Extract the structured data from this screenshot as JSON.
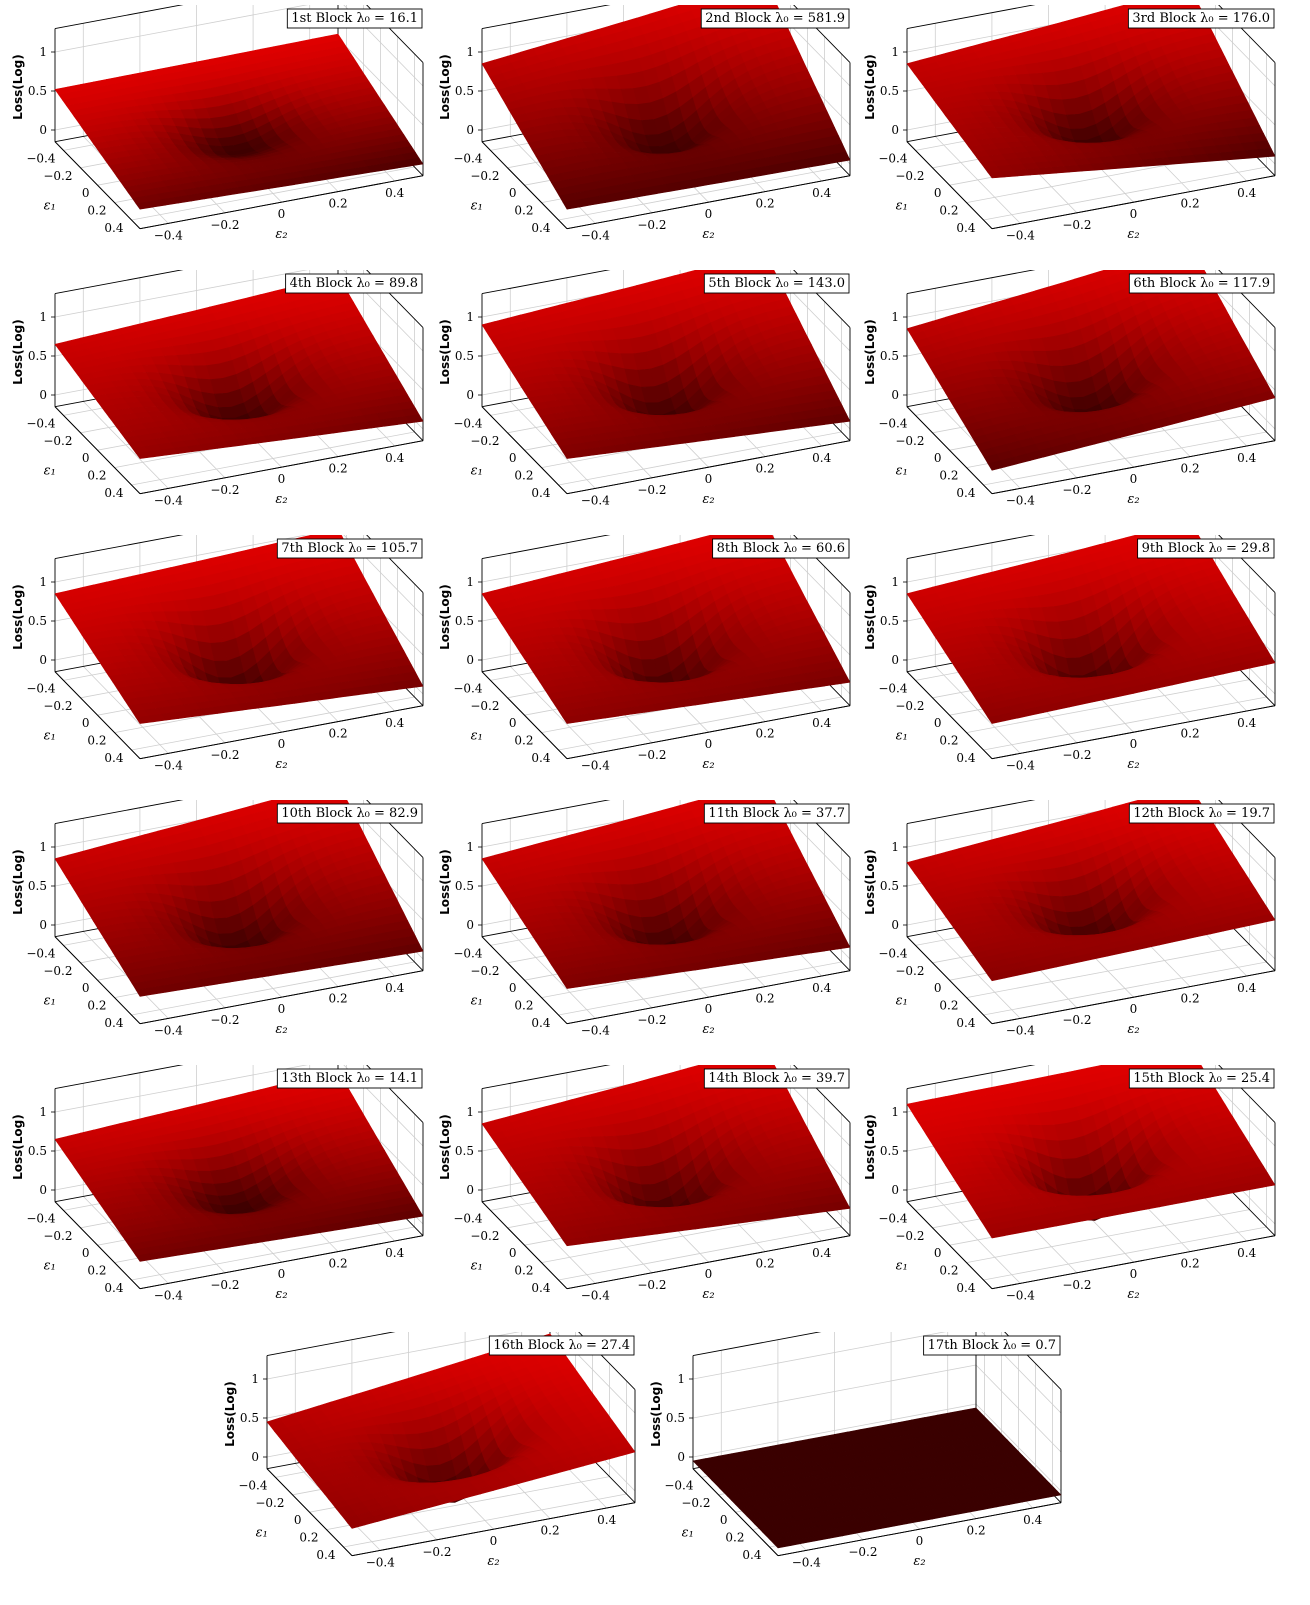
{
  "chart_data": [
    {
      "type": "surface",
      "title": "1st Block λ₀ = 16.1",
      "block": "1st Block",
      "lambda0": 16.1,
      "xlabel": "ε₁",
      "ylabel": "ε₂",
      "zlabel": "Loss(Log)",
      "xlim": [
        -0.5,
        0.5
      ],
      "ylim": [
        -0.5,
        0.5
      ],
      "zlim": [
        -0.15,
        1.2
      ],
      "xticks": [
        "−0.4",
        "−0.2",
        "0",
        "0.2",
        "0.4"
      ],
      "yticks": [
        "−0.4",
        "−0.2",
        "0",
        "0.2",
        "0.4"
      ],
      "zticks": [
        "0",
        "0.5",
        "1"
      ],
      "z_corner_back_left": 0.52,
      "z_corner_back_right": 0.55,
      "z_corner_front_left": 0.1,
      "z_corner_front_right": 0.0,
      "z_min": -0.2
    },
    {
      "type": "surface",
      "title": "2nd Block λ₀ = 581.9",
      "block": "2nd Block",
      "lambda0": 581.9,
      "xlabel": "ε₁",
      "ylabel": "ε₂",
      "zlabel": "Loss(Log)",
      "xlim": [
        -0.5,
        0.5
      ],
      "ylim": [
        -0.5,
        0.5
      ],
      "zlim": [
        -0.15,
        1.2
      ],
      "xticks": [
        "−0.4",
        "−0.2",
        "0",
        "0.2",
        "0.4"
      ],
      "yticks": [
        "−0.4",
        "−0.2",
        "0",
        "0.2",
        "0.4"
      ],
      "zticks": [
        "0",
        "0.5",
        "1"
      ],
      "z_corner_back_left": 0.85,
      "z_corner_back_right": 1.25,
      "z_corner_front_left": 0.1,
      "z_corner_front_right": 0.05,
      "z_min": -0.3
    },
    {
      "type": "surface",
      "title": "3rd Block λ₀ = 176.0",
      "block": "3rd Block",
      "lambda0": 176.0,
      "xlabel": "ε₁",
      "ylabel": "ε₂",
      "zlabel": "Loss(Log)",
      "xlim": [
        -0.5,
        0.5
      ],
      "ylim": [
        -0.5,
        0.5
      ],
      "zlim": [
        -0.15,
        1.2
      ],
      "xticks": [
        "−0.4",
        "−0.2",
        "0",
        "0.2",
        "0.4"
      ],
      "yticks": [
        "−0.4",
        "−0.2",
        "0",
        "0.2",
        "0.4"
      ],
      "zticks": [
        "0",
        "0.5",
        "1"
      ],
      "z_corner_back_left": 0.85,
      "z_corner_back_right": 1.15,
      "z_corner_front_left": 0.5,
      "z_corner_front_right": 0.1,
      "z_min": -0.25
    },
    {
      "type": "surface",
      "title": "4th Block λ₀ = 89.8",
      "block": "4th Block",
      "lambda0": 89.8,
      "xlabel": "ε₁",
      "ylabel": "ε₂",
      "zlabel": "Loss(Log)",
      "xlim": [
        -0.5,
        0.5
      ],
      "ylim": [
        -0.5,
        0.5
      ],
      "zlim": [
        -0.15,
        1.2
      ],
      "xticks": [
        "−0.4",
        "−0.2",
        "0",
        "0.2",
        "0.4"
      ],
      "yticks": [
        "−0.4",
        "−0.2",
        "0",
        "0.2",
        "0.4"
      ],
      "zticks": [
        "0",
        "0.5",
        "1"
      ],
      "z_corner_back_left": 0.65,
      "z_corner_back_right": 0.85,
      "z_corner_front_left": 0.3,
      "z_corner_front_right": 0.1,
      "z_min": -0.35
    },
    {
      "type": "surface",
      "title": "5th Block λ₀ = 143.0",
      "block": "5th Block",
      "lambda0": 143.0,
      "xlabel": "ε₁",
      "ylabel": "ε₂",
      "zlabel": "Loss(Log)",
      "xlim": [
        -0.5,
        0.5
      ],
      "ylim": [
        -0.5,
        0.5
      ],
      "zlim": [
        -0.15,
        1.2
      ],
      "xticks": [
        "−0.4",
        "−0.2",
        "0",
        "0.2",
        "0.4"
      ],
      "yticks": [
        "−0.4",
        "−0.2",
        "0",
        "0.2",
        "0.4"
      ],
      "zticks": [
        "0",
        "0.5",
        "1"
      ],
      "z_corner_back_left": 0.9,
      "z_corner_back_right": 1.15,
      "z_corner_front_left": 0.3,
      "z_corner_front_right": 0.1,
      "z_min": -0.35
    },
    {
      "type": "surface",
      "title": "6th Block λ₀ = 117.9",
      "block": "6th Block",
      "lambda0": 117.9,
      "xlabel": "ε₁",
      "ylabel": "ε₂",
      "zlabel": "Loss(Log)",
      "xlim": [
        -0.5,
        0.5
      ],
      "ylim": [
        -0.5,
        0.5
      ],
      "zlim": [
        -0.15,
        1.2
      ],
      "xticks": [
        "−0.4",
        "−0.2",
        "0",
        "0.2",
        "0.4"
      ],
      "yticks": [
        "−0.4",
        "−0.2",
        "0",
        "0.2",
        "0.4"
      ],
      "zticks": [
        "0",
        "0.5",
        "1"
      ],
      "z_corner_back_left": 0.85,
      "z_corner_back_right": 1.25,
      "z_corner_front_left": 0.15,
      "z_corner_front_right": 0.4,
      "z_min": -0.3
    },
    {
      "type": "surface",
      "title": "7th Block λ₀ = 105.7",
      "block": "7th Block",
      "lambda0": 105.7,
      "xlabel": "ε₁",
      "ylabel": "ε₂",
      "zlabel": "Loss(Log)",
      "xlim": [
        -0.5,
        0.5
      ],
      "ylim": [
        -0.5,
        0.5
      ],
      "zlim": [
        -0.15,
        1.2
      ],
      "xticks": [
        "−0.4",
        "−0.2",
        "0",
        "0.2",
        "0.4"
      ],
      "yticks": [
        "−0.4",
        "−0.2",
        "0",
        "0.2",
        "0.4"
      ],
      "zticks": [
        "0",
        "0.5",
        "1"
      ],
      "z_corner_back_left": 0.85,
      "z_corner_back_right": 1.0,
      "z_corner_front_left": 0.3,
      "z_corner_front_right": 0.1,
      "z_min": -0.45
    },
    {
      "type": "surface",
      "title": "8th Block λ₀ = 60.6",
      "block": "8th Block",
      "lambda0": 60.6,
      "xlabel": "ε₁",
      "ylabel": "ε₂",
      "zlabel": "Loss(Log)",
      "xlim": [
        -0.5,
        0.5
      ],
      "ylim": [
        -0.5,
        0.5
      ],
      "zlim": [
        -0.15,
        1.2
      ],
      "xticks": [
        "−0.4",
        "−0.2",
        "0",
        "0.2",
        "0.4"
      ],
      "yticks": [
        "−0.4",
        "−0.2",
        "0",
        "0.2",
        "0.4"
      ],
      "zticks": [
        "0",
        "0.5",
        "1"
      ],
      "z_corner_back_left": 0.85,
      "z_corner_back_right": 1.1,
      "z_corner_front_left": 0.3,
      "z_corner_front_right": 0.15,
      "z_min": -0.45
    },
    {
      "type": "surface",
      "title": "9th Block λ₀ = 29.8",
      "block": "9th Block",
      "lambda0": 29.8,
      "xlabel": "ε₁",
      "ylabel": "ε₂",
      "zlabel": "Loss(Log)",
      "xlim": [
        -0.5,
        0.5
      ],
      "ylim": [
        -0.5,
        0.5
      ],
      "zlim": [
        -0.15,
        1.2
      ],
      "xticks": [
        "−0.4",
        "−0.2",
        "0",
        "0.2",
        "0.4"
      ],
      "yticks": [
        "−0.4",
        "−0.2",
        "0",
        "0.2",
        "0.4"
      ],
      "zticks": [
        "0",
        "0.5",
        "1"
      ],
      "z_corner_back_left": 0.85,
      "z_corner_back_right": 1.1,
      "z_corner_front_left": 0.3,
      "z_corner_front_right": 0.4,
      "z_min": -0.45
    },
    {
      "type": "surface",
      "title": "10th Block λ₀ = 82.9",
      "block": "10th Block",
      "lambda0": 82.9,
      "xlabel": "ε₁",
      "ylabel": "ε₂",
      "zlabel": "Loss(Log)",
      "xlim": [
        -0.5,
        0.5
      ],
      "ylim": [
        -0.5,
        0.5
      ],
      "zlim": [
        -0.15,
        1.2
      ],
      "xticks": [
        "−0.4",
        "−0.2",
        "0",
        "0.2",
        "0.4"
      ],
      "yticks": [
        "−0.4",
        "−0.2",
        "0",
        "0.2",
        "0.4"
      ],
      "zticks": [
        "0",
        "0.5",
        "1"
      ],
      "z_corner_back_left": 0.85,
      "z_corner_back_right": 1.15,
      "z_corner_front_left": 0.2,
      "z_corner_front_right": 0.1,
      "z_min": -0.35
    },
    {
      "type": "surface",
      "title": "11th Block λ₀ = 37.7",
      "block": "11th Block",
      "lambda0": 37.7,
      "xlabel": "ε₁",
      "ylabel": "ε₂",
      "zlabel": "Loss(Log)",
      "xlim": [
        -0.5,
        0.5
      ],
      "ylim": [
        -0.5,
        0.5
      ],
      "zlim": [
        -0.15,
        1.2
      ],
      "xticks": [
        "−0.4",
        "−0.2",
        "0",
        "0.2",
        "0.4"
      ],
      "yticks": [
        "−0.4",
        "−0.2",
        "0",
        "0.2",
        "0.4"
      ],
      "zticks": [
        "0",
        "0.5",
        "1"
      ],
      "z_corner_back_left": 0.85,
      "z_corner_back_right": 1.15,
      "z_corner_front_left": 0.3,
      "z_corner_front_right": 0.15,
      "z_min": -0.35
    },
    {
      "type": "surface",
      "title": "12th Block λ₀ = 19.7",
      "block": "12th Block",
      "lambda0": 19.7,
      "xlabel": "ε₁",
      "ylabel": "ε₂",
      "zlabel": "Loss(Log)",
      "xlim": [
        -0.5,
        0.5
      ],
      "ylim": [
        -0.5,
        0.5
      ],
      "zlim": [
        -0.15,
        1.2
      ],
      "xticks": [
        "−0.4",
        "−0.2",
        "0",
        "0.2",
        "0.4"
      ],
      "yticks": [
        "−0.4",
        "−0.2",
        "0",
        "0.2",
        "0.4"
      ],
      "zticks": [
        "0",
        "0.5",
        "1"
      ],
      "z_corner_back_left": 0.8,
      "z_corner_back_right": 1.1,
      "z_corner_front_left": 0.4,
      "z_corner_front_right": 0.5,
      "z_min": -0.3
    },
    {
      "type": "surface",
      "title": "13th Block λ₀ = 14.1",
      "block": "13th Block",
      "lambda0": 14.1,
      "xlabel": "ε₁",
      "ylabel": "ε₂",
      "zlabel": "Loss(Log)",
      "xlim": [
        -0.5,
        0.5
      ],
      "ylim": [
        -0.5,
        0.5
      ],
      "zlim": [
        -0.15,
        1.2
      ],
      "xticks": [
        "−0.4",
        "−0.2",
        "0",
        "0.2",
        "0.4"
      ],
      "yticks": [
        "−0.4",
        "−0.2",
        "0",
        "0.2",
        "0.4"
      ],
      "zticks": [
        "0",
        "0.5",
        "1"
      ],
      "z_corner_back_left": 0.65,
      "z_corner_back_right": 0.85,
      "z_corner_front_left": 0.2,
      "z_corner_front_right": 0.1,
      "z_min": -0.25
    },
    {
      "type": "surface",
      "title": "14th Block λ₀ = 39.7",
      "block": "14th Block",
      "lambda0": 39.7,
      "xlabel": "ε₁",
      "ylabel": "ε₂",
      "zlabel": "Loss(Log)",
      "xlim": [
        -0.5,
        0.5
      ],
      "ylim": [
        -0.5,
        0.5
      ],
      "zlim": [
        -0.15,
        1.2
      ],
      "xticks": [
        "−0.4",
        "−0.2",
        "0",
        "0.2",
        "0.4"
      ],
      "yticks": [
        "−0.4",
        "−0.2",
        "0",
        "0.2",
        "0.4"
      ],
      "zticks": [
        "0",
        "0.5",
        "1"
      ],
      "z_corner_back_left": 0.85,
      "z_corner_back_right": 1.15,
      "z_corner_front_left": 0.4,
      "z_corner_front_right": 0.2,
      "z_min": -0.4
    },
    {
      "type": "surface",
      "title": "15th Block λ₀ = 25.4",
      "block": "15th Block",
      "lambda0": 25.4,
      "xlabel": "ε₁",
      "ylabel": "ε₂",
      "zlabel": "Loss(Log)",
      "xlim": [
        -0.5,
        0.5
      ],
      "ylim": [
        -0.5,
        0.5
      ],
      "zlim": [
        -0.15,
        1.2
      ],
      "xticks": [
        "−0.4",
        "−0.2",
        "0",
        "0.2",
        "0.4"
      ],
      "yticks": [
        "−0.4",
        "−0.2",
        "0",
        "0.2",
        "0.4"
      ],
      "zticks": [
        "0",
        "0.5",
        "1"
      ],
      "z_corner_back_left": 1.1,
      "z_corner_back_right": 1.15,
      "z_corner_front_left": 0.5,
      "z_corner_front_right": 0.5,
      "z_min": -0.4
    },
    {
      "type": "surface",
      "title": "16th Block λ₀ = 27.4",
      "block": "16th Block",
      "lambda0": 27.4,
      "xlabel": "ε₁",
      "ylabel": "ε₂",
      "zlabel": "Loss(Log)",
      "xlim": [
        -0.5,
        0.5
      ],
      "ylim": [
        -0.5,
        0.5
      ],
      "zlim": [
        -0.15,
        1.2
      ],
      "xticks": [
        "−0.4",
        "−0.2",
        "0",
        "0.2",
        "0.4"
      ],
      "yticks": [
        "−0.4",
        "−0.2",
        "0",
        "0.2",
        "0.4"
      ],
      "zticks": [
        "0",
        "0.5",
        "1"
      ],
      "z_corner_back_left": 0.45,
      "z_corner_back_right": 0.9,
      "z_corner_front_left": 0.2,
      "z_corner_front_right": 0.5,
      "z_min": -0.5
    },
    {
      "type": "surface",
      "title": "17th Block λ₀ = 0.7",
      "block": "17th Block",
      "lambda0": 0.7,
      "xlabel": "ε₁",
      "ylabel": "ε₂",
      "zlabel": "Loss(Log)",
      "xlim": [
        -0.5,
        0.5
      ],
      "ylim": [
        -0.5,
        0.5
      ],
      "zlim": [
        -0.15,
        1.2
      ],
      "xticks": [
        "−0.4",
        "−0.2",
        "0",
        "0.2",
        "0.4"
      ],
      "yticks": [
        "−0.4",
        "−0.2",
        "0",
        "0.2",
        "0.4"
      ],
      "zticks": [
        "0",
        "0.5",
        "1"
      ],
      "z_corner_back_left": -0.05,
      "z_corner_back_right": -0.05,
      "z_corner_front_left": -0.05,
      "z_corner_front_right": -0.05,
      "z_min": -0.05
    }
  ],
  "surface_color": "#e00000",
  "surface_dark": "#3a0000",
  "grid_color": "#cfcfcf",
  "axis_color": "#000000"
}
